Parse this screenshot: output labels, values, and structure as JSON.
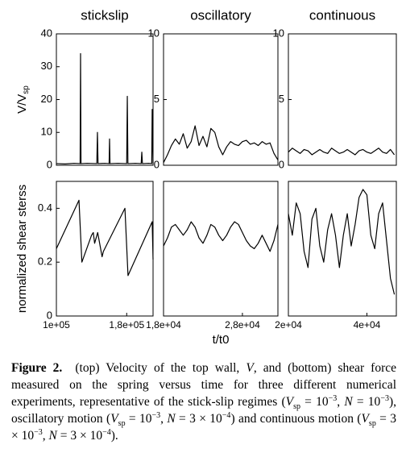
{
  "chart_data": [
    {
      "type": "line",
      "title": "stickslip",
      "ylabel": "V/V",
      "ylabel_sub": "sp",
      "x": [
        100000,
        110000,
        120000,
        127000,
        127500,
        128000,
        135000,
        146000,
        146700,
        147400,
        155000,
        160000,
        160500,
        161000,
        170000,
        180000,
        180700,
        181400,
        190000,
        196500,
        197200,
        197900,
        205000,
        208500,
        209000,
        210000
      ],
      "values": [
        0.5,
        0.4,
        0.6,
        0.5,
        34,
        0.5,
        0.6,
        0.5,
        10,
        0.5,
        0.6,
        0.5,
        8,
        0.5,
        0.6,
        0.5,
        21,
        0.5,
        0.6,
        0.5,
        4,
        0.5,
        0.6,
        0.5,
        17,
        0.5
      ],
      "color": "#000000",
      "xlim": [
        100000,
        210000
      ],
      "ylim": [
        0,
        40
      ],
      "yticks": [
        0,
        10,
        20,
        30,
        40
      ]
    },
    {
      "type": "line",
      "title": "oscillatory",
      "x": [
        18000,
        18500,
        19000,
        19500,
        20000,
        20500,
        21000,
        21500,
        22000,
        22500,
        23000,
        23500,
        24000,
        24500,
        25000,
        25500,
        26000,
        26500,
        27000,
        27500,
        28000,
        28500,
        29000,
        29500,
        30000,
        30500,
        31000,
        31500,
        32000,
        32500
      ],
      "values": [
        0.2,
        0.8,
        1.5,
        2,
        1.6,
        2.4,
        1.3,
        1.8,
        3,
        1.5,
        2.2,
        1.4,
        2.8,
        2.5,
        1.4,
        0.8,
        1.4,
        1.8,
        1.6,
        1.5,
        1.8,
        1.9,
        1.6,
        1.7,
        1.5,
        1.8,
        1.6,
        1.7,
        0.9,
        0.4
      ],
      "color": "#000000",
      "xlim": [
        18000,
        32500
      ],
      "ylim": [
        0,
        10
      ],
      "yticks": [
        0,
        5,
        10
      ]
    },
    {
      "type": "line",
      "title": "continuous",
      "x": [
        20000,
        21000,
        22000,
        23000,
        24000,
        25000,
        26000,
        27000,
        28000,
        29000,
        30000,
        31000,
        32000,
        33000,
        34000,
        35000,
        36000,
        37000,
        38000,
        39000,
        40000,
        41000,
        42000,
        43000,
        44000,
        45000,
        46000,
        47000
      ],
      "values": [
        1,
        1.3,
        1.1,
        0.9,
        1.2,
        1.1,
        0.8,
        1,
        1.2,
        1,
        0.9,
        1.3,
        1.1,
        0.9,
        1,
        1.2,
        1,
        0.8,
        1.1,
        1.2,
        1,
        0.9,
        1.1,
        1.3,
        1,
        0.9,
        1.2,
        0.8
      ],
      "color": "#000000",
      "xlim": [
        20000,
        47500
      ],
      "ylim": [
        0,
        10
      ],
      "yticks": [
        0,
        5,
        10
      ]
    },
    {
      "type": "line",
      "ylabel": "normalized shear sterss",
      "x": [
        100000,
        125700,
        129000,
        140000,
        142000,
        143500,
        147000,
        152000,
        153500,
        178000,
        181500,
        209000,
        210000
      ],
      "values": [
        0.25,
        0.43,
        0.2,
        0.3,
        0.31,
        0.27,
        0.31,
        0.22,
        0.24,
        0.4,
        0.15,
        0.35,
        0.21
      ],
      "color": "#000000",
      "xlim": [
        100000,
        210000
      ],
      "ylim": [
        0,
        0.5
      ],
      "yticks": [
        0,
        0.2,
        0.4
      ],
      "xticks": [
        {
          "value": 100000,
          "label": "1e+05"
        },
        {
          "value": 180000,
          "label": "1,8e+05"
        }
      ]
    },
    {
      "type": "line",
      "xlabel": "t/t0",
      "x": [
        18000,
        18500,
        19000,
        19500,
        20000,
        20500,
        21000,
        21500,
        22000,
        22500,
        23000,
        23500,
        24000,
        24500,
        25000,
        25500,
        26000,
        26500,
        27000,
        27500,
        28000,
        28500,
        29000,
        29500,
        30000,
        30500,
        31000,
        31500,
        32000,
        32500
      ],
      "values": [
        0.26,
        0.29,
        0.33,
        0.34,
        0.32,
        0.3,
        0.32,
        0.35,
        0.33,
        0.29,
        0.27,
        0.3,
        0.34,
        0.33,
        0.3,
        0.28,
        0.3,
        0.33,
        0.35,
        0.34,
        0.31,
        0.28,
        0.26,
        0.25,
        0.27,
        0.3,
        0.27,
        0.24,
        0.28,
        0.34
      ],
      "color": "#000000",
      "xlim": [
        18000,
        32500
      ],
      "ylim": [
        0,
        0.5
      ],
      "xticks": [
        {
          "value": 18000,
          "label": "1,8e+04"
        },
        {
          "value": 28000,
          "label": "2,8e+04"
        }
      ]
    },
    {
      "type": "line",
      "x": [
        20000,
        21000,
        22000,
        23000,
        24000,
        25000,
        26000,
        27000,
        28000,
        29000,
        30000,
        31000,
        32000,
        33000,
        34000,
        35000,
        36000,
        37000,
        38000,
        39000,
        40000,
        41000,
        42000,
        43000,
        44000,
        45000,
        46000,
        47000
      ],
      "values": [
        0.38,
        0.3,
        0.42,
        0.38,
        0.24,
        0.18,
        0.36,
        0.4,
        0.26,
        0.2,
        0.32,
        0.38,
        0.3,
        0.18,
        0.3,
        0.38,
        0.26,
        0.34,
        0.44,
        0.47,
        0.45,
        0.3,
        0.25,
        0.38,
        0.42,
        0.28,
        0.14,
        0.08
      ],
      "color": "#000000",
      "xlim": [
        20000,
        47500
      ],
      "ylim": [
        0,
        0.5
      ],
      "xticks": [
        {
          "value": 20000,
          "label": "2e+04"
        },
        {
          "value": 40000,
          "label": "4e+04"
        }
      ]
    }
  ],
  "caption": {
    "label": "Figure 2.",
    "parts": [
      "(top) Velocity of the top wall, ",
      "V",
      ", and (bottom) shear force measured on the spring versus time for three different numerical experiments, representative of the stick-slip regimes (",
      "V",
      "sp",
      " = 10",
      "−3",
      ", ",
      "N",
      " = 10",
      "−3",
      "), oscillatory motion (",
      "V",
      "sp",
      " = 10",
      "−3",
      ", ",
      "N",
      " = 3 × 10",
      "−4",
      ") and continuous motion (",
      "V",
      "sp",
      " = 3 × 10",
      "−3",
      ", ",
      "N",
      " = 3 × 10",
      "−4",
      ")."
    ]
  }
}
